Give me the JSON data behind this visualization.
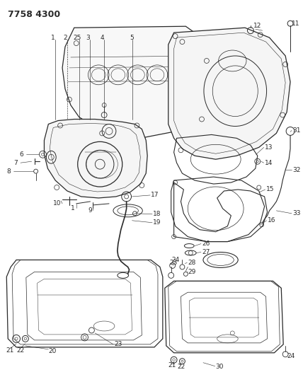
{
  "title": "7758 4300",
  "bg": "#ffffff",
  "lc": "#2a2a2a",
  "fw": 4.28,
  "fh": 5.33,
  "dpi": 100
}
